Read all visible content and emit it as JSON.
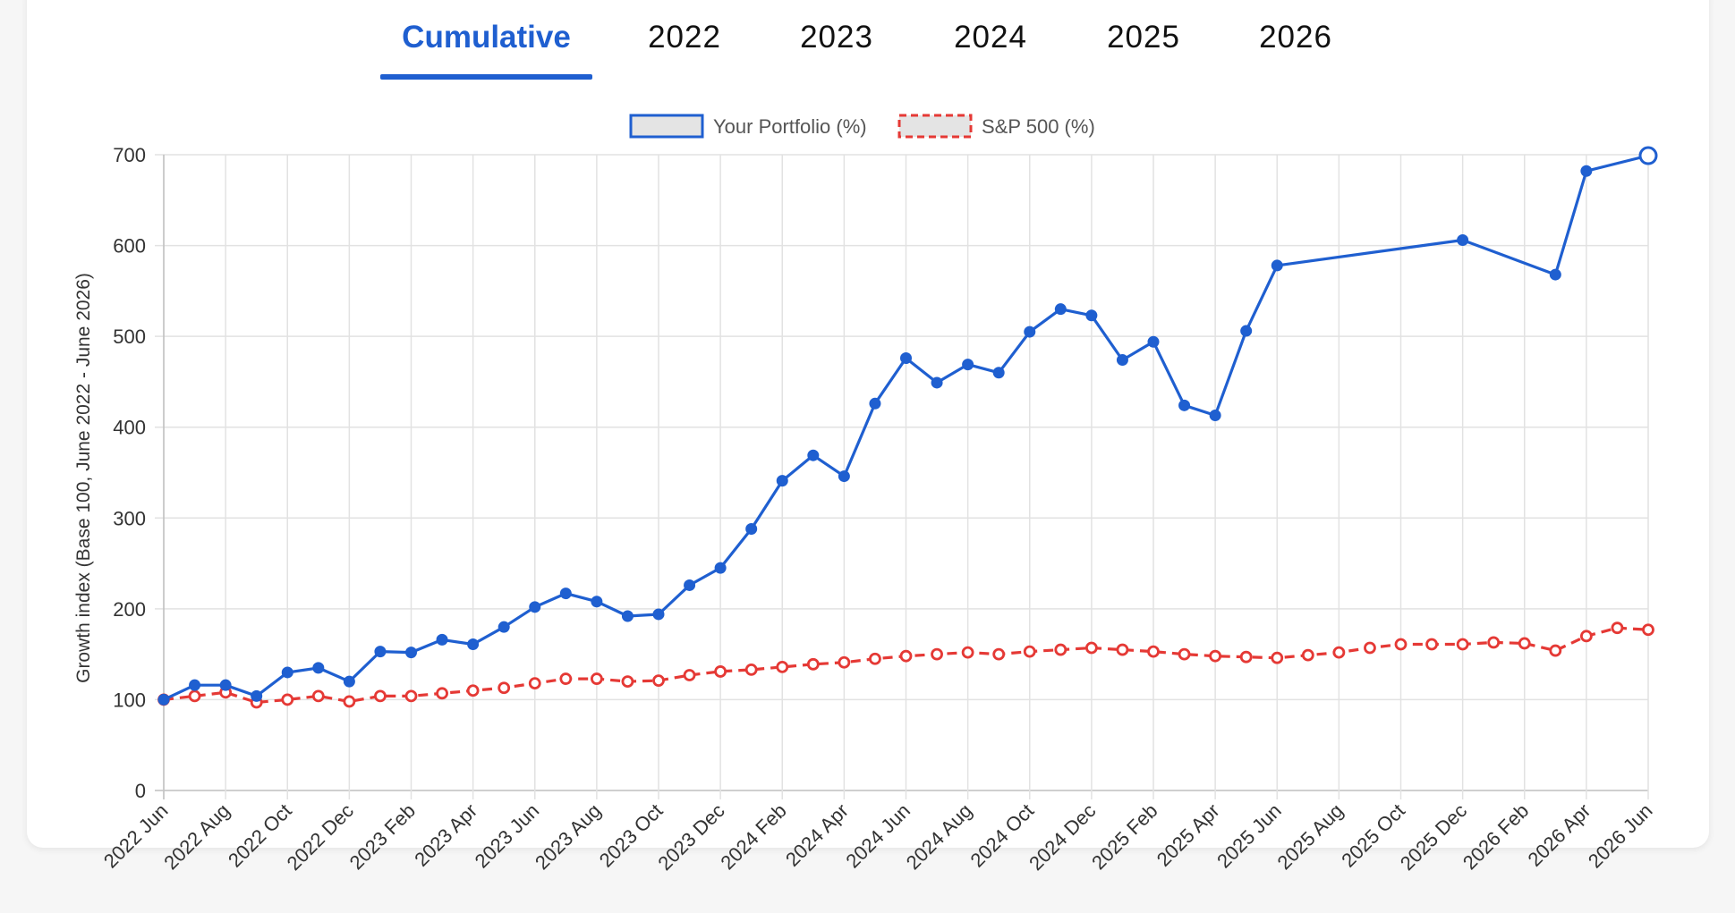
{
  "tabs": [
    {
      "label": "Cumulative",
      "active": true
    },
    {
      "label": "2022",
      "active": false
    },
    {
      "label": "2023",
      "active": false
    },
    {
      "label": "2024",
      "active": false
    },
    {
      "label": "2025",
      "active": false
    },
    {
      "label": "2026",
      "active": false
    }
  ],
  "colors": {
    "accent": "#1f5fd0",
    "portfolio": "#1f5fd0",
    "benchmark": "#e53935"
  },
  "chart_data": {
    "type": "line",
    "title": "",
    "xlabel": "",
    "ylabel": "Growth index (Base 100, June 2022 - June 2026)",
    "ylim": [
      0,
      700
    ],
    "yticks": [
      0,
      100,
      200,
      300,
      400,
      500,
      600,
      700
    ],
    "grid": true,
    "legend_position": "top-center",
    "x": [
      "2022 Jun",
      "2022 Jul",
      "2022 Aug",
      "2022 Sep",
      "2022 Oct",
      "2022 Nov",
      "2022 Dec",
      "2023 Jan",
      "2023 Feb",
      "2023 Mar",
      "2023 Apr",
      "2023 May",
      "2023 Jun",
      "2023 Jul",
      "2023 Aug",
      "2023 Sep",
      "2023 Oct",
      "2023 Nov",
      "2023 Dec",
      "2024 Jan",
      "2024 Feb",
      "2024 Mar",
      "2024 Apr",
      "2024 May",
      "2024 Jun",
      "2024 Jul",
      "2024 Aug",
      "2024 Sep",
      "2024 Oct",
      "2024 Nov",
      "2024 Dec",
      "2025 Jan",
      "2025 Feb",
      "2025 Mar",
      "2025 Apr",
      "2025 May",
      "2025 Jun",
      "2025 Jul",
      "2025 Aug",
      "2025 Sep",
      "2025 Oct",
      "2025 Nov",
      "2025 Dec",
      "2026 Jan",
      "2026 Feb",
      "2026 Mar",
      "2026 Apr",
      "2026 May",
      "2026 Jun"
    ],
    "xtick_labels": [
      "2022 Jun",
      "2022 Aug",
      "2022 Oct",
      "2022 Dec",
      "2023 Feb",
      "2023 Apr",
      "2023 Jun",
      "2023 Aug",
      "2023 Oct",
      "2023 Dec",
      "2024 Feb",
      "2024 Apr",
      "2024 Jun",
      "2024 Aug",
      "2024 Oct",
      "2024 Dec",
      "2025 Feb",
      "2025 Apr",
      "2025 Jun",
      "2025 Aug",
      "2025 Oct",
      "2025 Dec",
      "2026 Feb",
      "2026 Apr",
      "2026 Jun"
    ],
    "series": [
      {
        "name": "Your Portfolio (%)",
        "color": "#1f5fd0",
        "style": "solid",
        "values": [
          100,
          116,
          116,
          104,
          130,
          135,
          120,
          153,
          152,
          166,
          161,
          180,
          202,
          217,
          208,
          192,
          194,
          226,
          245,
          288,
          341,
          369,
          346,
          426,
          476,
          449,
          469,
          460,
          505,
          530,
          523,
          474,
          494,
          424,
          413,
          506,
          578,
          null,
          null,
          null,
          null,
          null,
          606,
          null,
          null,
          568,
          682,
          null,
          699
        ]
      },
      {
        "name": "S&P 500 (%)",
        "color": "#e53935",
        "style": "dashed",
        "values": [
          100,
          104,
          108,
          97,
          100,
          104,
          98,
          104,
          104,
          107,
          110,
          113,
          118,
          123,
          123,
          120,
          121,
          127,
          131,
          133,
          136,
          139,
          141,
          145,
          148,
          150,
          152,
          150,
          153,
          155,
          157,
          155,
          153,
          150,
          148,
          147,
          146,
          149,
          152,
          157,
          161,
          161,
          161,
          163,
          162,
          154,
          170,
          179,
          177
        ]
      }
    ]
  }
}
